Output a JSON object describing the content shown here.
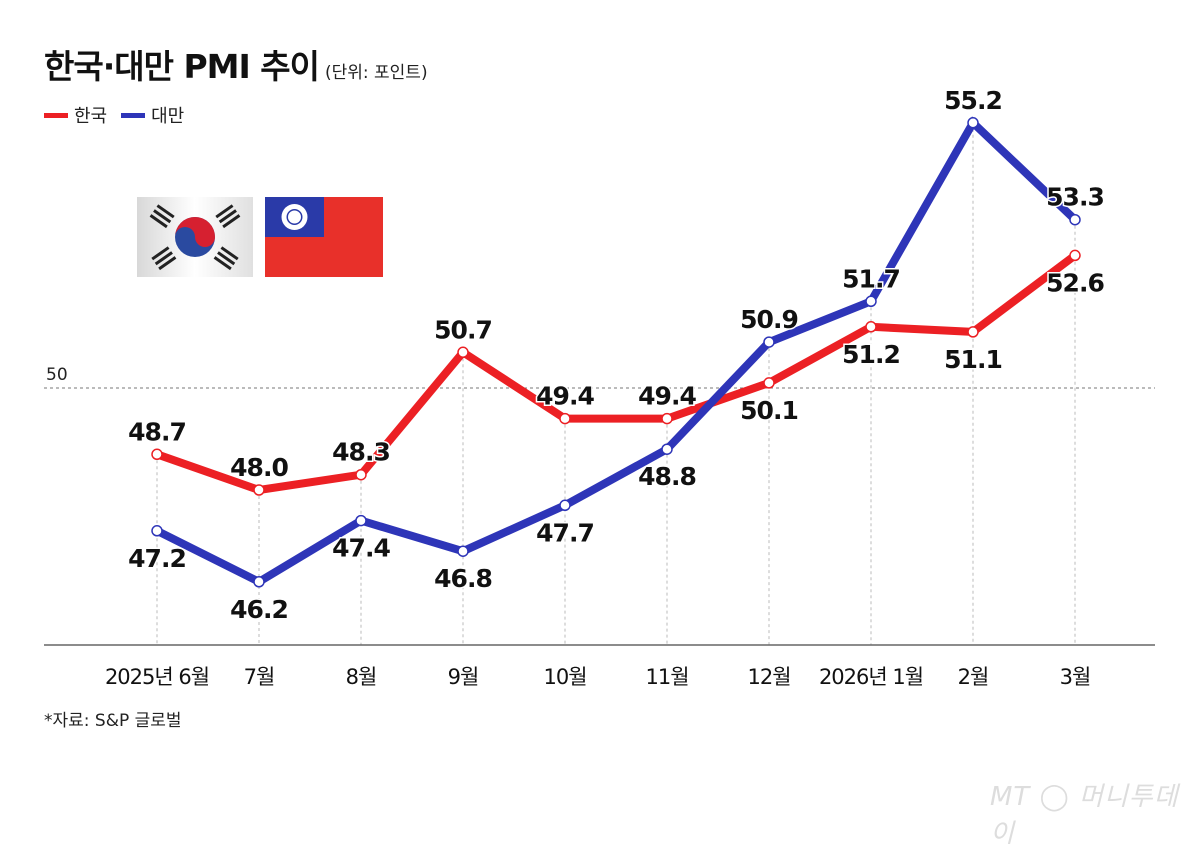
{
  "title": "한국·대만 PMI 추이",
  "unit": "(단위: 포인트)",
  "source": "*자료: S&P 글로벌",
  "watermark": "MT 머니투데이",
  "chart_data": {
    "type": "line",
    "categories": [
      "2025년 6월",
      "7월",
      "8월",
      "9월",
      "10월",
      "11월",
      "12월",
      "2026년 1월",
      "2월",
      "3월"
    ],
    "series": [
      {
        "name": "한국",
        "color": "#ec2024",
        "values": [
          48.7,
          48.0,
          48.3,
          50.7,
          49.4,
          49.4,
          50.1,
          51.2,
          51.1,
          52.6
        ]
      },
      {
        "name": "대만",
        "color": "#2e35b8",
        "values": [
          47.2,
          46.2,
          47.4,
          46.8,
          47.7,
          48.8,
          50.9,
          51.7,
          55.2,
          53.3
        ]
      }
    ],
    "reference_line": {
      "value": 50,
      "label": "50"
    },
    "ylim": [
      45,
      57.6
    ],
    "grid": false,
    "legend": "top-left",
    "xlabel": "",
    "ylabel": ""
  }
}
